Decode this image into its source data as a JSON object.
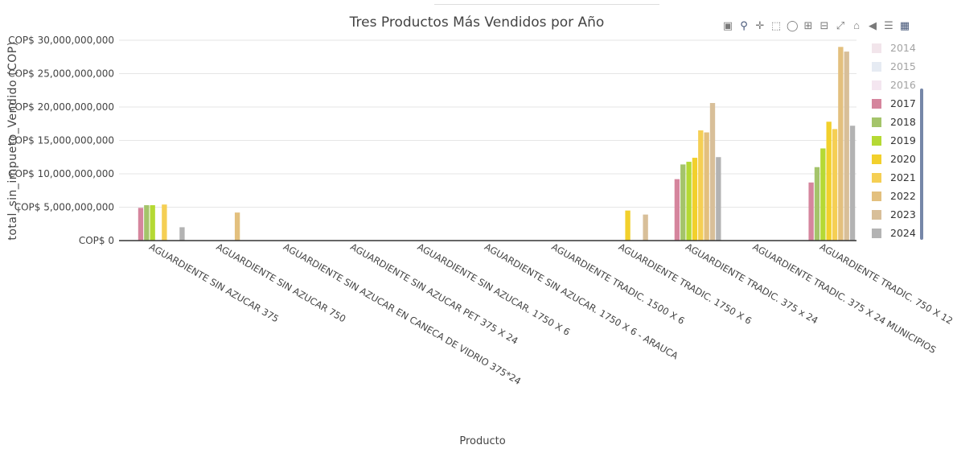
{
  "chart_data": {
    "type": "bar",
    "title": "Tres Productos Más Vendidos por Año",
    "xlabel": "Producto",
    "ylabel": "total_sin_impueto_Vendido (COP)",
    "ylim": [
      0,
      30000000000
    ],
    "yticks": [
      0,
      5000000000,
      10000000000,
      15000000000,
      20000000000,
      25000000000,
      30000000000
    ],
    "ytick_labels": [
      "COP$ 0",
      "COP$ 5,000,000,000",
      "COP$ 10,000,000,000",
      "COP$ 15,000,000,000",
      "COP$ 20,000,000,000",
      "COP$ 25,000,000,000",
      "COP$ 30,000,000,000"
    ],
    "grid": true,
    "legend_position": "right",
    "categories": [
      "AGUARDIENTE SIN AZUCAR 375",
      "AGUARDIENTE SIN AZUCAR 750",
      "AGUARDIENTE SIN AZUCAR EN CANECA DE VIDRIO 375*24",
      "AGUARDIENTE SIN AZUCAR PET 375 X 24",
      "AGUARDIENTE SIN AZUCAR. 1750 X 6",
      "AGUARDIENTE SIN AZUCAR. 1750 X 6 - ARAUCA",
      "AGUARDIENTE TRADIC. 1500 X 6",
      "AGUARDIENTE TRADIC. 1750 X 6",
      "AGUARDIENTE TRADIC. 375 x 24",
      "AGUARDIENTE TRADIC. 375 X 24 MUNICIPIOS",
      "AGUARDIENTE TRADIC. 750 X 12"
    ],
    "series": [
      {
        "name": "2014",
        "color": "#e3c6d3",
        "values": [
          0,
          0,
          0,
          0,
          0,
          0,
          0,
          0,
          0,
          0,
          0
        ]
      },
      {
        "name": "2015",
        "color": "#c8d3e6",
        "values": [
          0,
          0,
          0,
          0,
          0,
          0,
          0,
          0,
          0,
          0,
          0
        ]
      },
      {
        "name": "2016",
        "color": "#e8c8e0",
        "values": [
          0,
          0,
          0,
          0,
          0,
          0,
          0,
          0,
          0,
          0,
          0
        ]
      },
      {
        "name": "2017",
        "color": "#d5859d",
        "values": [
          4900000000,
          0,
          0,
          0,
          0,
          0,
          0,
          0,
          9200000000,
          0,
          8700000000
        ]
      },
      {
        "name": "2018",
        "color": "#a4c46a",
        "values": [
          5300000000,
          0,
          0,
          0,
          0,
          0,
          0,
          0,
          11400000000,
          0,
          11000000000
        ]
      },
      {
        "name": "2019",
        "color": "#b5d934",
        "values": [
          5300000000,
          0,
          0,
          0,
          0,
          0,
          0,
          0,
          11800000000,
          0,
          13800000000
        ]
      },
      {
        "name": "2020",
        "color": "#f2d02c",
        "values": [
          0,
          0,
          0,
          0,
          0,
          0,
          0,
          4500000000,
          12400000000,
          0,
          17800000000
        ]
      },
      {
        "name": "2021",
        "color": "#f5cf54",
        "values": [
          5400000000,
          0,
          0,
          0,
          0,
          0,
          0,
          0,
          16500000000,
          0,
          16700000000
        ]
      },
      {
        "name": "2022",
        "color": "#e3c07e",
        "values": [
          0,
          4200000000,
          0,
          0,
          0,
          0,
          0,
          0,
          16200000000,
          0,
          29000000000
        ]
      },
      {
        "name": "2023",
        "color": "#d8bf99",
        "values": [
          0,
          0,
          0,
          0,
          0,
          0,
          0,
          3900000000,
          20600000000,
          0,
          28300000000
        ]
      },
      {
        "name": "2024",
        "color": "#b3b3b3",
        "values": [
          2000000000,
          0,
          0,
          0,
          0,
          0,
          0,
          0,
          12500000000,
          0,
          17200000000
        ]
      }
    ]
  },
  "legend": {
    "items": [
      {
        "label": "2014",
        "color": "#e3c6d3"
      },
      {
        "label": "2015",
        "color": "#c8d3e6"
      },
      {
        "label": "2016",
        "color": "#e8c8e0"
      },
      {
        "label": "2017",
        "color": "#d5859d"
      },
      {
        "label": "2018",
        "color": "#a4c46a"
      },
      {
        "label": "2019",
        "color": "#b5d934"
      },
      {
        "label": "2020",
        "color": "#f2d02c"
      },
      {
        "label": "2021",
        "color": "#f5cf54"
      },
      {
        "label": "2022",
        "color": "#e3c07e"
      },
      {
        "label": "2023",
        "color": "#d8bf99"
      },
      {
        "label": "2024",
        "color": "#b3b3b3"
      }
    ]
  },
  "toolbar": {
    "icons": [
      "camera-icon",
      "zoom-icon",
      "pan-icon",
      "box-select-icon",
      "lasso-icon",
      "zoom-in-icon",
      "zoom-out-icon",
      "autoscale-icon",
      "reset-axes-icon",
      "hover-closest-icon",
      "hover-compare-icon",
      "plotly-logo-icon"
    ]
  }
}
